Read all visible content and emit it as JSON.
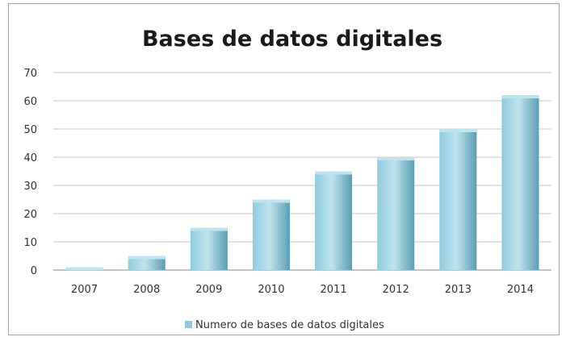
{
  "chart_data": {
    "type": "bar",
    "title": "Bases de datos digitales",
    "xlabel": "",
    "ylabel": "",
    "categories": [
      "2007",
      "2008",
      "2009",
      "2010",
      "2011",
      "2012",
      "2013",
      "2014"
    ],
    "series": [
      {
        "name": "Numero de bases de datos digitales",
        "values": [
          1,
          5,
          15,
          25,
          35,
          40,
          50,
          62
        ]
      }
    ],
    "ylim": [
      0,
      70
    ],
    "yticks": [
      "0",
      "10",
      "20",
      "30",
      "40",
      "50",
      "60",
      "70"
    ],
    "grid": "horizontal",
    "legend_position": "bottom",
    "colors": {
      "bar_light": "#bfe4ef",
      "bar_mid": "#8dcbde",
      "bar_dark": "#5a9db3",
      "gridline": "#c8c8c8",
      "axis": "#888888"
    }
  }
}
